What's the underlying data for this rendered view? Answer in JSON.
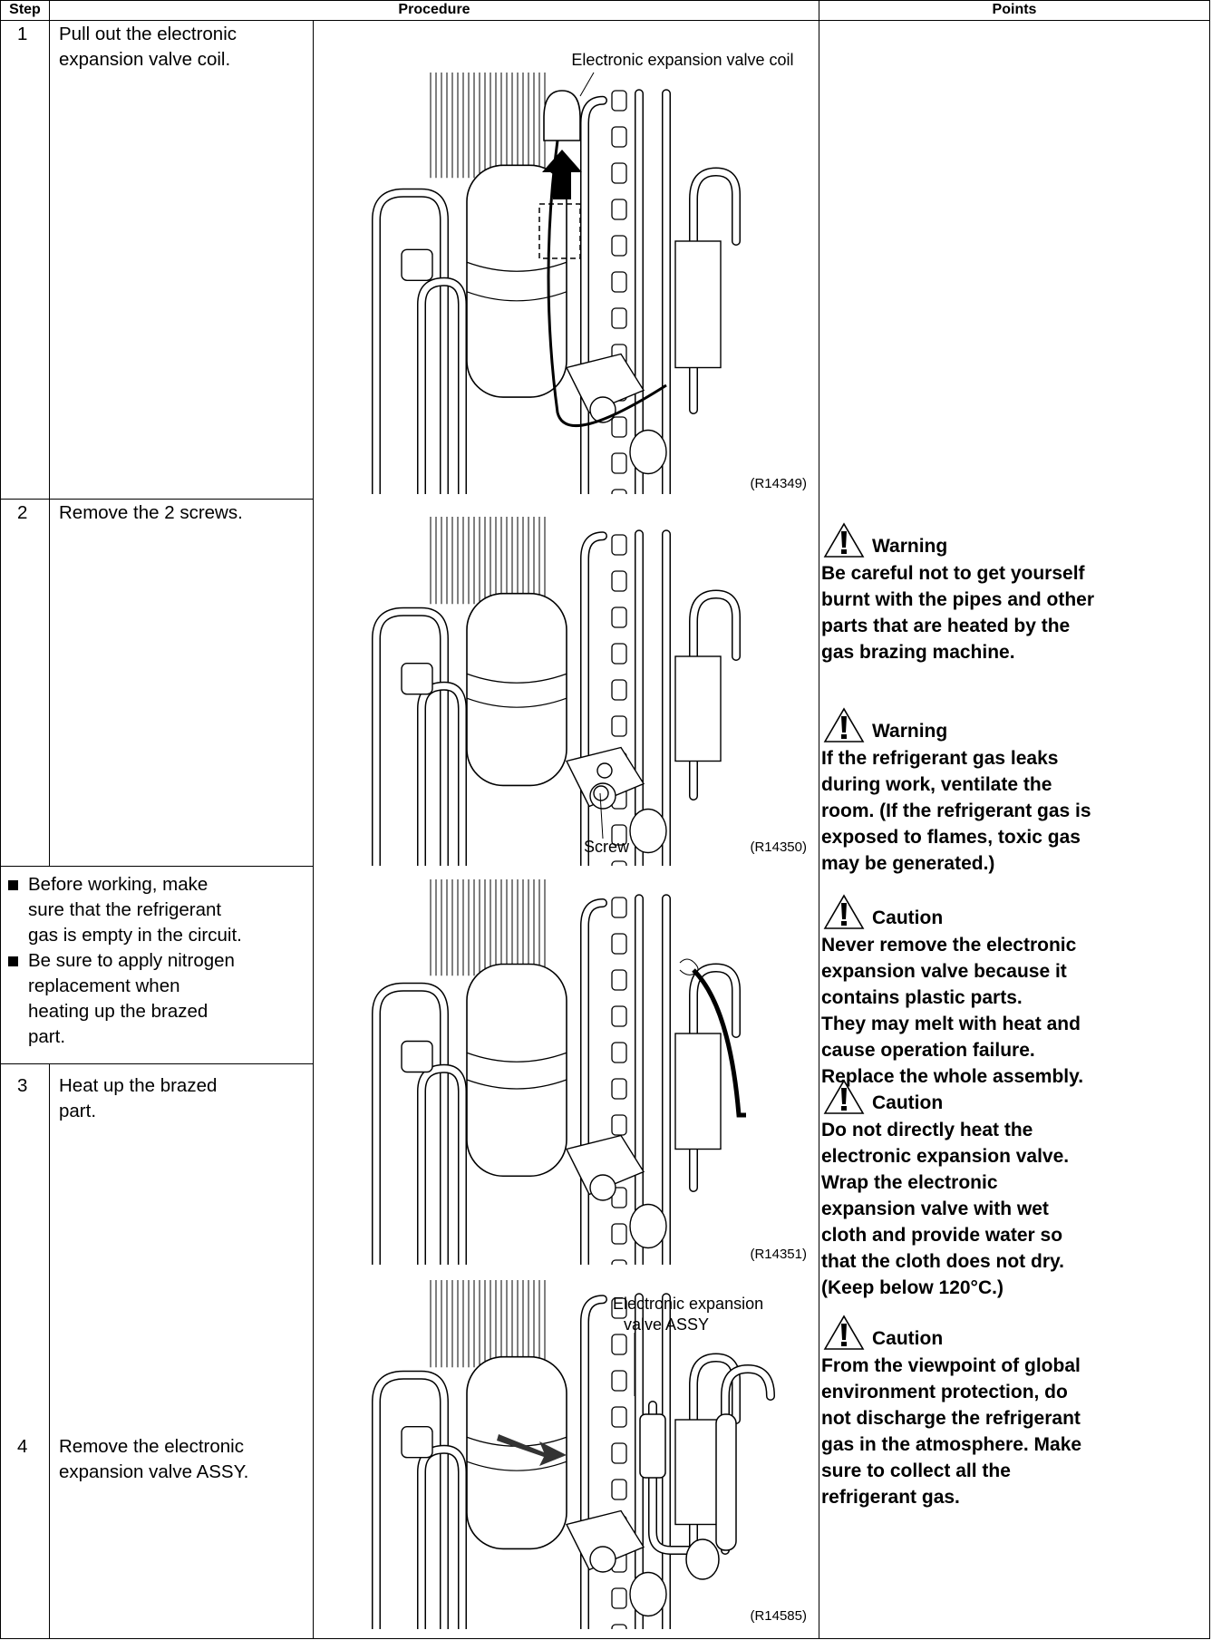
{
  "header": {
    "step": "Step",
    "procedure": "Procedure",
    "points": "Points"
  },
  "steps": [
    {
      "number": "1",
      "text": [
        "Pull out the electronic",
        "expansion valve coil."
      ]
    },
    {
      "number": "2",
      "text": [
        "Remove the 2 screws."
      ]
    },
    {
      "number": "3",
      "text": [
        "Heat up the brazed",
        "part."
      ]
    },
    {
      "number": "4",
      "text": [
        "Remove the electronic",
        "expansion valve ASSY."
      ]
    }
  ],
  "notes": [
    [
      "Before working, make",
      "sure that the refrigerant",
      "gas is empty in the circuit."
    ],
    [
      "Be sure to apply nitrogen",
      "replacement when",
      "heating up the brazed",
      "part."
    ]
  ],
  "figures": [
    {
      "code": "(R14349)",
      "labels": [
        "Electronic expansion valve coil"
      ]
    },
    {
      "code": "(R14350)",
      "labels": [
        "Screw"
      ]
    },
    {
      "code": "(R14351)",
      "labels": []
    },
    {
      "code": "(R14585)",
      "labels": [
        "Electronic expansion",
        "valve ASSY"
      ]
    }
  ],
  "points": [
    {
      "label": "Warning",
      "lines": [
        "Be careful not to get yourself",
        "burnt with the pipes and other",
        "parts that are heated by the",
        "gas brazing machine."
      ]
    },
    {
      "label": "Warning",
      "lines": [
        "If the refrigerant gas leaks",
        "during work, ventilate the",
        "room. (If the refrigerant gas is",
        "exposed to flames, toxic gas",
        "may be generated.)"
      ]
    },
    {
      "label": "Caution",
      "lines": [
        "Never remove the electronic",
        "expansion valve because it",
        "contains plastic parts.",
        "They may melt with heat and",
        "cause operation failure.",
        "Replace the whole assembly."
      ]
    },
    {
      "label": "Caution",
      "lines": [
        "Do not directly heat the",
        "electronic expansion valve.",
        "Wrap the electronic",
        "expansion valve with wet",
        "cloth and provide water so",
        "that the cloth does not dry.",
        "(Keep below 120°C.)"
      ]
    },
    {
      "label": "Caution",
      "lines": [
        "From the viewpoint of global",
        "environment protection, do",
        "not discharge the refrigerant",
        "gas in the atmosphere. Make",
        "sure to collect all the",
        "refrigerant gas."
      ]
    }
  ]
}
